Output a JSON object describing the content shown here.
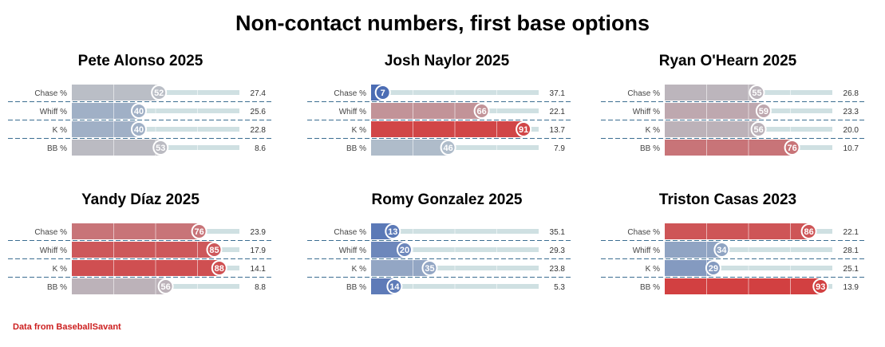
{
  "title": "Non-contact numbers, first base options",
  "source": "Data from BaseballSavant",
  "chart_data": [
    {
      "type": "bar",
      "title": "Pete Alonso 2025",
      "categories": [
        "Chase %",
        "Whiff %",
        "K %",
        "BB %"
      ],
      "percentiles": [
        52,
        40,
        40,
        53
      ],
      "values": [
        "27.4",
        "25.6",
        "22.8",
        "8.6"
      ],
      "xlim": [
        0,
        100
      ]
    },
    {
      "type": "bar",
      "title": "Josh Naylor 2025",
      "categories": [
        "Chase %",
        "Whiff %",
        "K %",
        "BB %"
      ],
      "percentiles": [
        7,
        66,
        91,
        46
      ],
      "values": [
        "37.1",
        "22.1",
        "13.7",
        "7.9"
      ],
      "xlim": [
        0,
        100
      ]
    },
    {
      "type": "bar",
      "title": "Ryan O'Hearn 2025",
      "categories": [
        "Chase %",
        "Whiff %",
        "K %",
        "BB %"
      ],
      "percentiles": [
        55,
        59,
        56,
        76
      ],
      "values": [
        "26.8",
        "23.3",
        "20.0",
        "10.7"
      ],
      "xlim": [
        0,
        100
      ]
    },
    {
      "type": "bar",
      "title": "Yandy Díaz 2025",
      "categories": [
        "Chase %",
        "Whiff %",
        "K %",
        "BB %"
      ],
      "percentiles": [
        76,
        85,
        88,
        56
      ],
      "values": [
        "23.9",
        "17.9",
        "14.1",
        "8.8"
      ],
      "xlim": [
        0,
        100
      ]
    },
    {
      "type": "bar",
      "title": "Romy Gonzalez 2025",
      "categories": [
        "Chase %",
        "Whiff %",
        "K %",
        "BB %"
      ],
      "percentiles": [
        13,
        20,
        35,
        14
      ],
      "values": [
        "35.1",
        "29.3",
        "23.8",
        "5.3"
      ],
      "xlim": [
        0,
        100
      ]
    },
    {
      "type": "bar",
      "title": "Triston Casas 2023",
      "categories": [
        "Chase %",
        "Whiff %",
        "K %",
        "BB %"
      ],
      "percentiles": [
        86,
        34,
        29,
        93
      ],
      "values": [
        "22.1",
        "28.1",
        "25.1",
        "13.9"
      ],
      "xlim": [
        0,
        100
      ]
    }
  ]
}
